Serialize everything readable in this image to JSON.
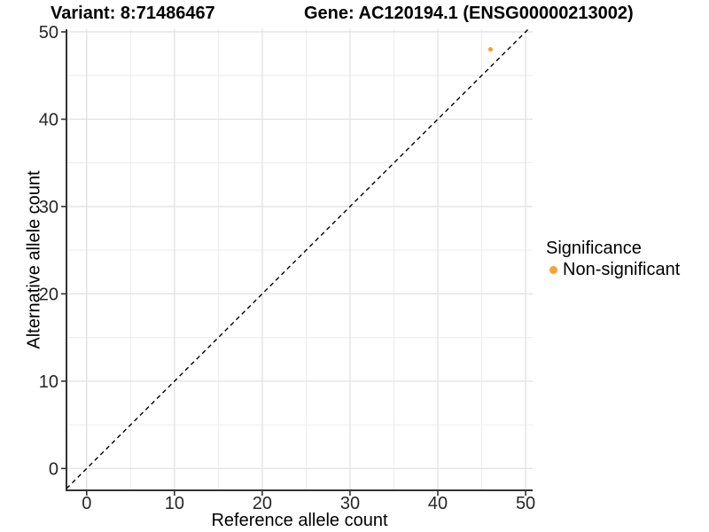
{
  "chart_data": {
    "type": "scatter",
    "title_left": "Variant: 8:71486467",
    "title_right": "Gene: AC120194.1 (ENSG00000213002)",
    "xlabel": "Reference allele count",
    "ylabel": "Alternative allele count",
    "xlim": [
      -2.3,
      50.8
    ],
    "ylim": [
      -2.5,
      50.3
    ],
    "xticks": [
      0,
      10,
      20,
      30,
      40,
      50
    ],
    "yticks": [
      0,
      10,
      20,
      30,
      40,
      50
    ],
    "minor_xticks": [
      5,
      15,
      25,
      35,
      45
    ],
    "minor_yticks": [
      5,
      15,
      25,
      35,
      45
    ],
    "grid": true,
    "abline": {
      "slope": 1,
      "intercept": 0,
      "style": "dashed",
      "color": "#000000"
    },
    "series": [
      {
        "name": "Non-significant",
        "color": "#F9A232",
        "points": [
          [
            46,
            48
          ]
        ]
      }
    ],
    "legend": {
      "position": "right",
      "title": "Significance",
      "items": [
        {
          "label": "Non-significant",
          "color": "#F9A232"
        }
      ]
    },
    "colors": {
      "axis_line": "#333333",
      "tick_text": "#262626",
      "grid_major": "#e2e2e2",
      "grid_minor": "#ececec"
    }
  }
}
